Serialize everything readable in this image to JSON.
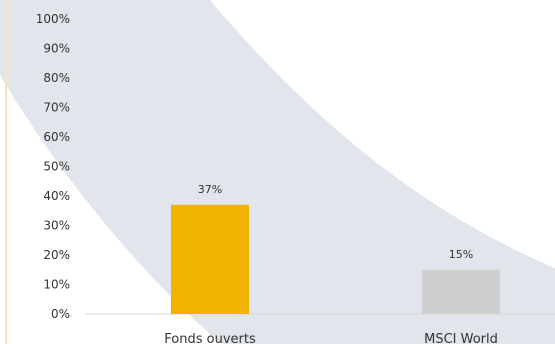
{
  "chart_data": {
    "type": "bar",
    "categories": [
      "Fonds ouverts",
      "MSCI World"
    ],
    "values": [
      37,
      15
    ],
    "value_labels": [
      "37%",
      "15%"
    ],
    "ylim": [
      0,
      100
    ],
    "y_ticks": [
      "0%",
      "10%",
      "20%",
      "30%",
      "40%",
      "50%",
      "60%",
      "70%",
      "80%",
      "90%",
      "100%"
    ],
    "grid": false,
    "colors": [
      "#f2b200",
      "#cfcfcf"
    ],
    "background_band_color": "#e1e5ec",
    "axis_text_color": "#333333"
  }
}
